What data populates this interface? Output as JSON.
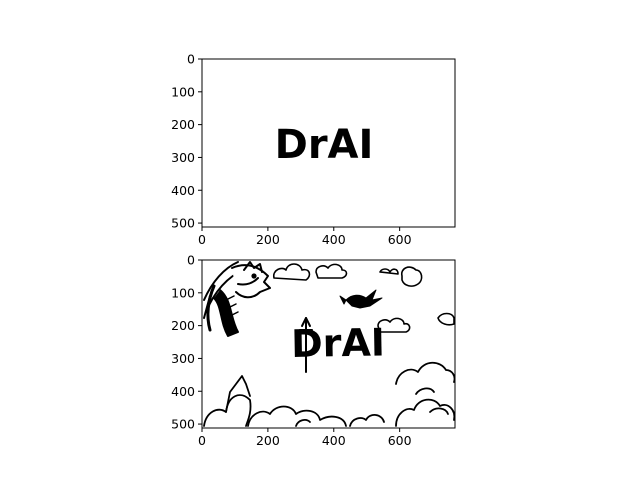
{
  "chart_data": [
    {
      "type": "image",
      "panel": "top",
      "image_extent": {
        "width": 768,
        "height": 512
      },
      "xlim": [
        0,
        768
      ],
      "ylim": [
        512,
        0
      ],
      "xticks": [
        0,
        200,
        400,
        600
      ],
      "yticks": [
        0,
        100,
        200,
        300,
        400,
        500
      ],
      "image_text": "DrAI",
      "image_content": "plain-text-logo"
    },
    {
      "type": "image",
      "panel": "bottom",
      "image_extent": {
        "width": 768,
        "height": 512
      },
      "xlim": [
        0,
        768
      ],
      "ylim": [
        512,
        0
      ],
      "xticks": [
        0,
        200,
        400,
        600
      ],
      "yticks": [
        0,
        100,
        200,
        300,
        400,
        500
      ],
      "image_text": "DrAI",
      "image_content": "ink-illustration-dragons-clouds"
    }
  ],
  "colors": {
    "ink": "#000000",
    "paper": "#ffffff"
  }
}
